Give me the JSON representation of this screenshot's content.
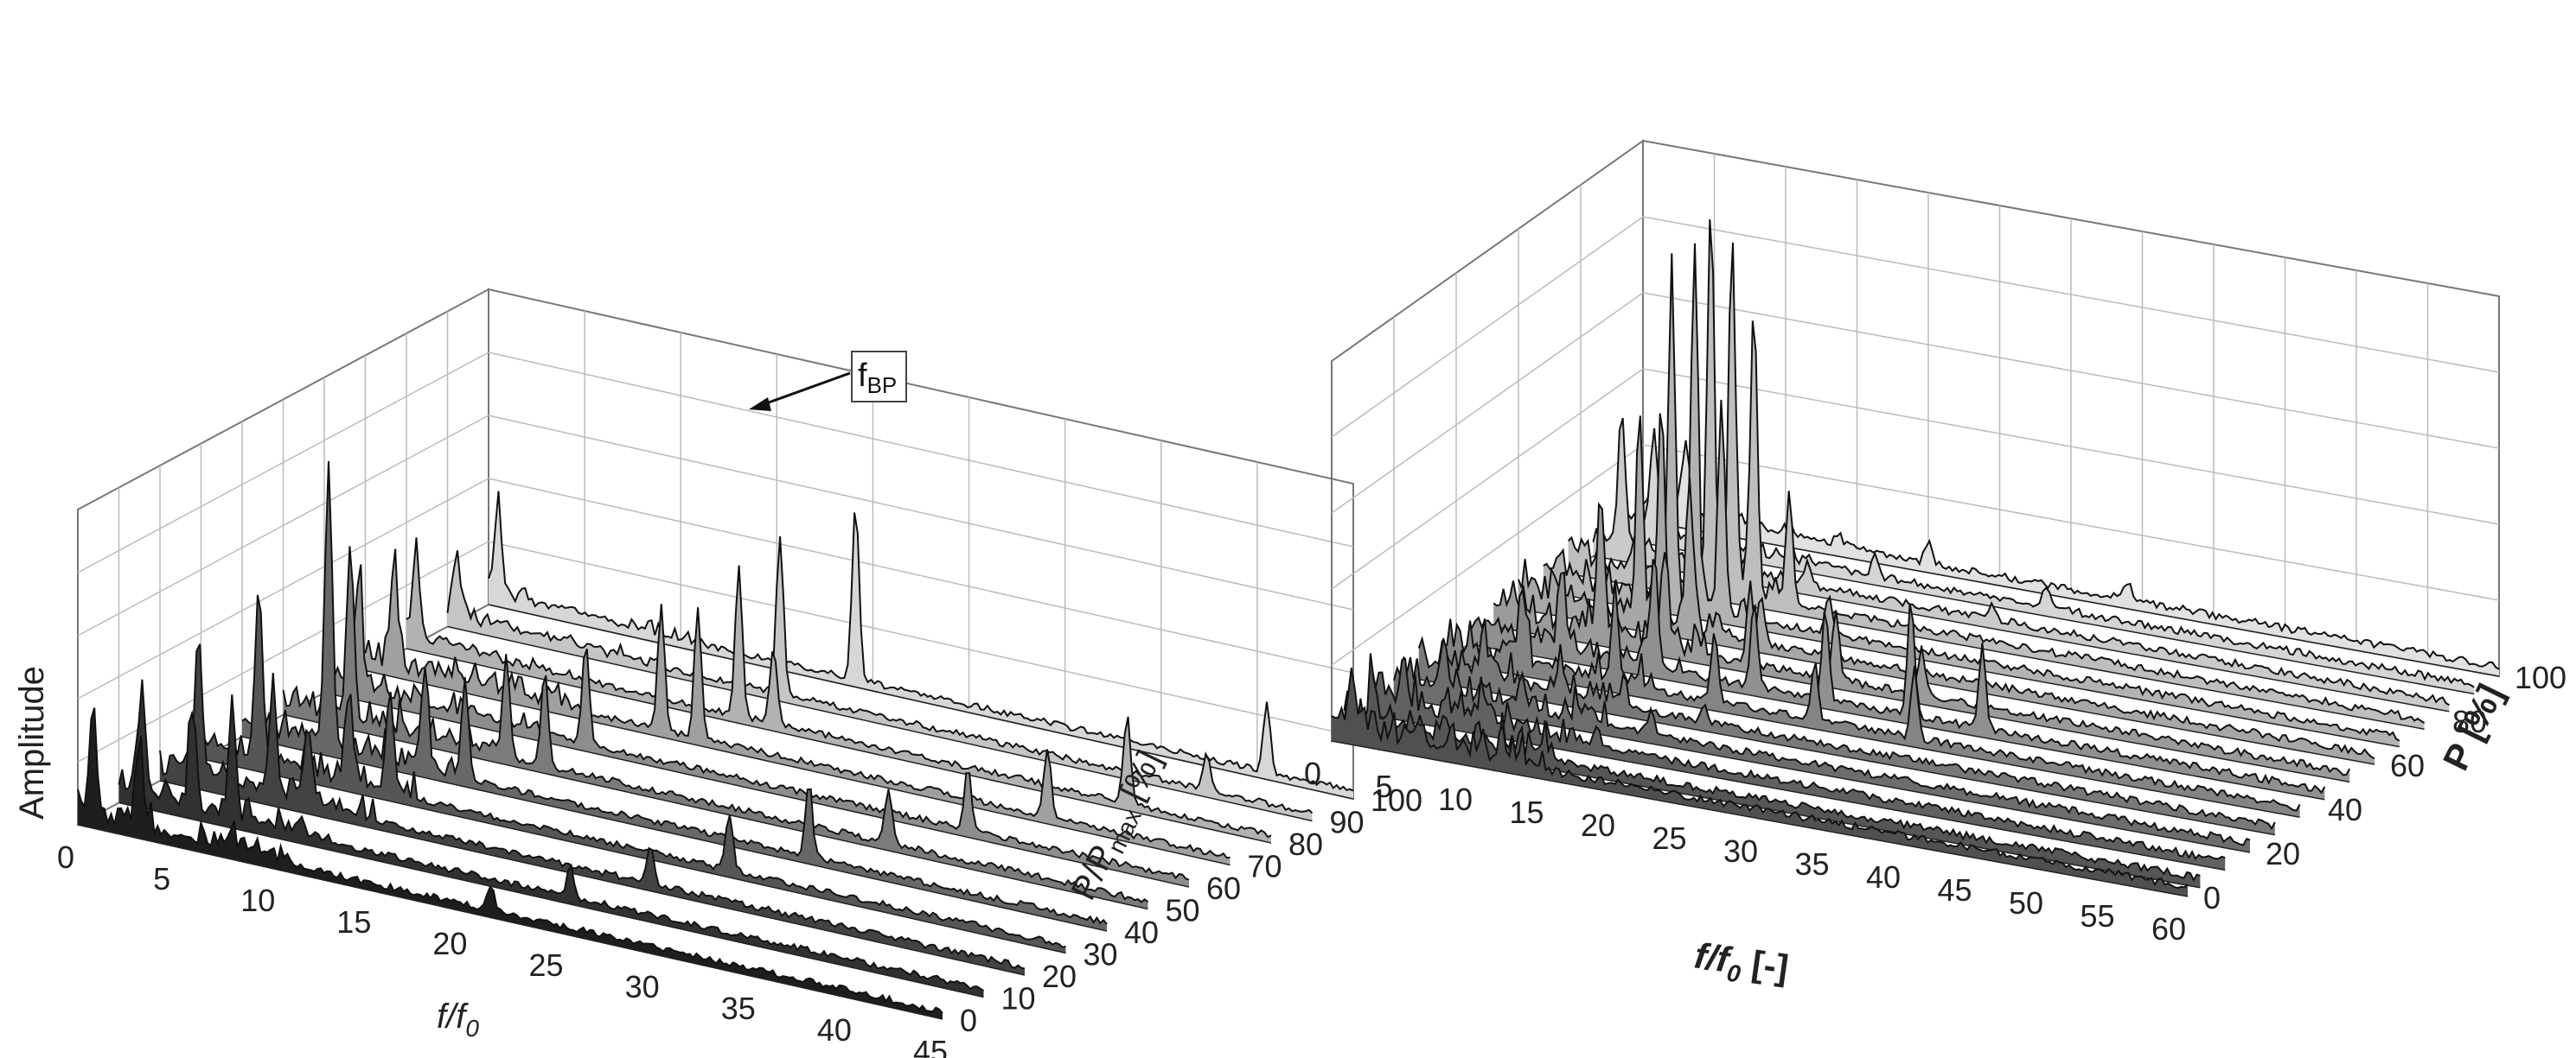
{
  "chart_data": [
    {
      "type": "waterfall",
      "title": "",
      "xlabel": {
        "main": "f/f",
        "sub": "0"
      },
      "ylabel": "Amplitude",
      "zlabel": {
        "main": "P/P",
        "sub": "max",
        "tail": " [%]"
      },
      "x_range": [
        0,
        45
      ],
      "x_ticks": [
        "0",
        "5",
        "10",
        "15",
        "20",
        "25",
        "30",
        "35",
        "40",
        "45"
      ],
      "z_range": [
        0,
        100
      ],
      "z_ticks": [
        "0",
        "10",
        "20",
        "30",
        "40",
        "50",
        "60",
        "70",
        "80",
        "90",
        "100"
      ],
      "grid": true,
      "annotation": {
        "main": "f",
        "sub": "BP",
        "x": 19.1,
        "z": 100
      },
      "series": [
        {
          "z": 100,
          "peaks": [
            [
              0.5,
              0.3
            ],
            [
              19.1,
              0.55
            ],
            [
              40.5,
              0.22
            ]
          ]
        },
        {
          "z": 90,
          "peaks": [
            [
              0.5,
              0.2
            ],
            [
              17.3,
              0.5
            ],
            [
              39.5,
              0.12
            ]
          ]
        },
        {
          "z": 80,
          "peaks": [
            [
              0.5,
              0.3
            ],
            [
              17.3,
              0.48
            ],
            [
              19.1,
              0.25
            ],
            [
              37.5,
              0.28
            ]
          ]
        },
        {
          "z": 70,
          "peaks": [
            [
              1.5,
              0.3
            ],
            [
              15.4,
              0.4
            ],
            [
              17.3,
              0.42
            ],
            [
              35.5,
              0.22
            ]
          ]
        },
        {
          "z": 60,
          "peaks": [
            [
              1.8,
              0.35
            ],
            [
              13.6,
              0.32
            ],
            [
              33.5,
              0.2
            ]
          ]
        },
        {
          "z": 50,
          "peaks": [
            [
              3.5,
              0.55
            ],
            [
              11.6,
              0.33
            ],
            [
              13.6,
              0.3
            ],
            [
              31.5,
              0.18
            ]
          ]
        },
        {
          "z": 40,
          "peaks": [
            [
              4.5,
              0.9
            ],
            [
              9.5,
              0.3
            ],
            [
              11.6,
              0.32
            ],
            [
              29.5,
              0.24
            ]
          ]
        },
        {
          "z": 30,
          "peaks": [
            [
              3.0,
              0.55
            ],
            [
              7.7,
              0.28
            ],
            [
              9.8,
              0.3
            ],
            [
              27.5,
              0.18
            ]
          ]
        },
        {
          "z": 20,
          "peaks": [
            [
              2.0,
              0.45
            ],
            [
              5.9,
              0.34
            ],
            [
              7.7,
              0.25
            ],
            [
              25.5,
              0.12
            ]
          ]
        },
        {
          "z": 10,
          "peaks": [
            [
              1.2,
              0.35
            ],
            [
              3.8,
              0.3
            ],
            [
              5.9,
              0.35
            ],
            [
              23.5,
              0.1
            ]
          ]
        },
        {
          "z": 0,
          "peaks": [
            [
              0.8,
              0.3
            ],
            [
              3.2,
              0.25
            ],
            [
              21.5,
              0.08
            ]
          ]
        }
      ]
    },
    {
      "type": "waterfall",
      "title": "",
      "xlabel": {
        "main": "f/f",
        "sub": "0",
        "tail": " [-]"
      },
      "ylabel": "",
      "zlabel": {
        "main": "P [%]"
      },
      "x_range": [
        0,
        60
      ],
      "x_ticks": [
        "0",
        "5",
        "10",
        "15",
        "20",
        "25",
        "30",
        "35",
        "40",
        "45",
        "50",
        "55",
        "60"
      ],
      "z_range": [
        0,
        100
      ],
      "z_ticks": [
        "0",
        "20",
        "40",
        "60",
        "80",
        "100"
      ],
      "grid": true,
      "series": [
        {
          "z": 100,
          "peaks": [
            [
              3.0,
              0.18
            ],
            [
              20.0,
              0.06
            ],
            [
              34.0,
              0.05
            ]
          ]
        },
        {
          "z": 92,
          "peaks": [
            [
              2.5,
              0.25
            ],
            [
              18.0,
              0.06
            ],
            [
              30.0,
              0.05
            ]
          ]
        },
        {
          "z": 84,
          "peaks": [
            [
              2.0,
              0.35
            ],
            [
              15.0,
              0.06
            ],
            [
              28.0,
              0.04
            ]
          ]
        },
        {
          "z": 76,
          "peaks": [
            [
              10.0,
              1.0
            ],
            [
              11.5,
              0.9
            ],
            [
              13.0,
              0.75
            ],
            [
              15.5,
              0.3
            ]
          ]
        },
        {
          "z": 68,
          "peaks": [
            [
              9.0,
              0.85
            ],
            [
              10.6,
              0.95
            ],
            [
              12.5,
              0.55
            ],
            [
              20.0,
              0.1
            ]
          ]
        },
        {
          "z": 60,
          "peaks": [
            [
              8.5,
              0.55
            ],
            [
              10.0,
              0.55
            ],
            [
              12.0,
              0.4
            ],
            [
              17.0,
              0.12
            ]
          ]
        },
        {
          "z": 52,
          "peaks": [
            [
              7.5,
              0.35
            ],
            [
              12.0,
              0.25
            ],
            [
              18.0,
              0.22
            ],
            [
              24.0,
              0.18
            ],
            [
              30.0,
              0.12
            ]
          ]
        },
        {
          "z": 44,
          "peaks": [
            [
              6.5,
              0.2
            ],
            [
              13.0,
              0.28
            ],
            [
              20.0,
              0.22
            ],
            [
              25.0,
              0.24
            ],
            [
              31.0,
              0.3
            ],
            [
              36.0,
              0.22
            ]
          ]
        },
        {
          "z": 36,
          "peaks": [
            [
              5.5,
              0.2
            ],
            [
              12.0,
              0.22
            ],
            [
              19.0,
              0.18
            ],
            [
              26.0,
              0.15
            ],
            [
              33.0,
              0.18
            ]
          ]
        },
        {
          "z": 28,
          "peaks": [
            [
              4.5,
              0.12
            ],
            [
              10.0,
              0.08
            ],
            [
              20.0,
              0.05
            ]
          ]
        },
        {
          "z": 20,
          "peaks": [
            [
              3.5,
              0.12
            ],
            [
              9.0,
              0.08
            ],
            [
              18.0,
              0.06
            ]
          ]
        },
        {
          "z": 12,
          "peaks": [
            [
              2.5,
              0.1
            ],
            [
              8.0,
              0.07
            ],
            [
              16.0,
              0.05
            ]
          ]
        },
        {
          "z": 4,
          "peaks": [
            [
              2.0,
              0.12
            ],
            [
              7.0,
              0.06
            ],
            [
              14.0,
              0.05
            ]
          ]
        },
        {
          "z": 0,
          "peaks": [
            [
              1.5,
              0.1
            ],
            [
              6.0,
              0.05
            ],
            [
              12.0,
              0.04
            ]
          ]
        }
      ]
    }
  ]
}
